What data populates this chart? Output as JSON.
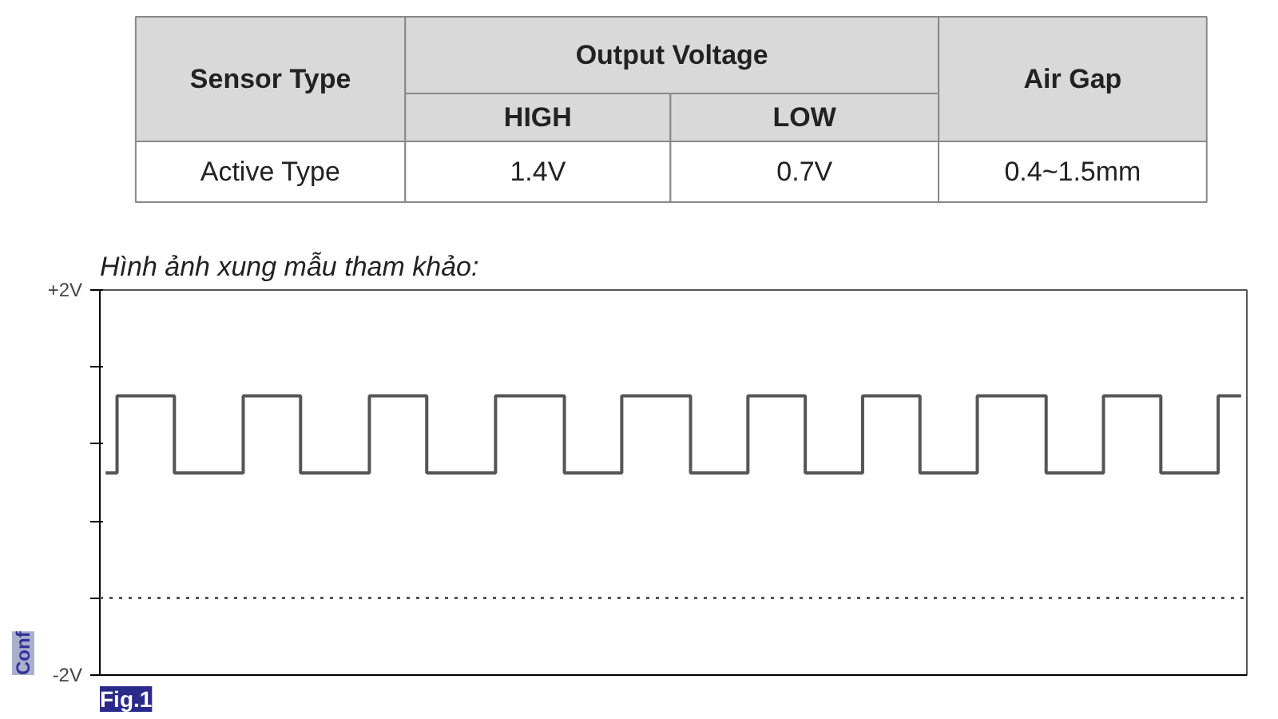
{
  "chart_data": [
    {
      "type": "other",
      "annotations": [
        "Sensor Type",
        "Output Voltage",
        "Air Gap",
        "HIGH",
        "LOW",
        "Active Type",
        "1.4V",
        "0.7V",
        "0.4~1.5mm"
      ]
    },
    {
      "type": "step",
      "title": "Hình ảnh xung mẫu tham khảo:",
      "annotations": [
        "Conf",
        "Fig.1"
      ],
      "categories": [
        null,
        null,
        null,
        null,
        null,
        null,
        null,
        null,
        null,
        null,
        null,
        null,
        null,
        null,
        null,
        null,
        null,
        null,
        null,
        null,
        null,
        null,
        null,
        null,
        null,
        null,
        null,
        null,
        null,
        null,
        null,
        null,
        null,
        null,
        null,
        null,
        null,
        null,
        null,
        null,
        null,
        null,
        null,
        null,
        null,
        null,
        null,
        null,
        null,
        null,
        null,
        null,
        null,
        null,
        null,
        null,
        null,
        null,
        null,
        null,
        null,
        null,
        null,
        null,
        null,
        null,
        null,
        null,
        null,
        null,
        null,
        null,
        null,
        null,
        null,
        null,
        null,
        null,
        null,
        null,
        null,
        null,
        null,
        null,
        null,
        null,
        null,
        null,
        null,
        null,
        null,
        null,
        null,
        null,
        null,
        null,
        null,
        null,
        null,
        null
      ],
      "series": [
        {
          "color": "#555555",
          "values": [
            0.1,
            0.9,
            0.9,
            0.9,
            0.9,
            0.9,
            0.1,
            0.1,
            0.1,
            0.1,
            0.1,
            0.1,
            0.9,
            0.9,
            0.9,
            0.9,
            0.9,
            0.1,
            0.1,
            0.1,
            0.1,
            0.1,
            0.1,
            0.9,
            0.9,
            0.9,
            0.9,
            0.9,
            0.1,
            0.1,
            0.1,
            0.1,
            0.1,
            0.1,
            0.9,
            0.9,
            0.9,
            0.9,
            0.9,
            0.9,
            0.1,
            0.1,
            0.1,
            0.1,
            0.1,
            0.9,
            0.9,
            0.9,
            0.9,
            0.9,
            0.9,
            0.1,
            0.1,
            0.1,
            0.1,
            0.1,
            0.9,
            0.9,
            0.9,
            0.9,
            0.9,
            0.1,
            0.1,
            0.1,
            0.1,
            0.1,
            0.9,
            0.9,
            0.9,
            0.9,
            0.9,
            0.1,
            0.1,
            0.1,
            0.1,
            0.1,
            0.9,
            0.9,
            0.9,
            0.9,
            0.9,
            0.9,
            0.1,
            0.1,
            0.1,
            0.1,
            0.1,
            0.9,
            0.9,
            0.9,
            0.9,
            0.9,
            0.1,
            0.1,
            0.1,
            0.1,
            0.1,
            0.9,
            0.9,
            0.9
          ]
        }
      ],
      "ylim": [
        -2,
        2
      ],
      "yticks": [
        {
          "value": 2,
          "label": "+2V"
        },
        {
          "value": 1.2,
          "label": null
        },
        {
          "value": 0.4,
          "label": null
        },
        {
          "value": -0.4,
          "label": null
        },
        {
          "value": -1.2,
          "label": null
        },
        {
          "value": -2,
          "label": "-2V"
        }
      ],
      "tick_labels": "y",
      "grid": false,
      "line_style": "solid",
      "marker": "none",
      "ref_lines": [
        {
          "axis": "y",
          "value": -1.2,
          "label": null,
          "color": "#555555",
          "line_style": "dotted"
        }
      ]
    }
  ]
}
